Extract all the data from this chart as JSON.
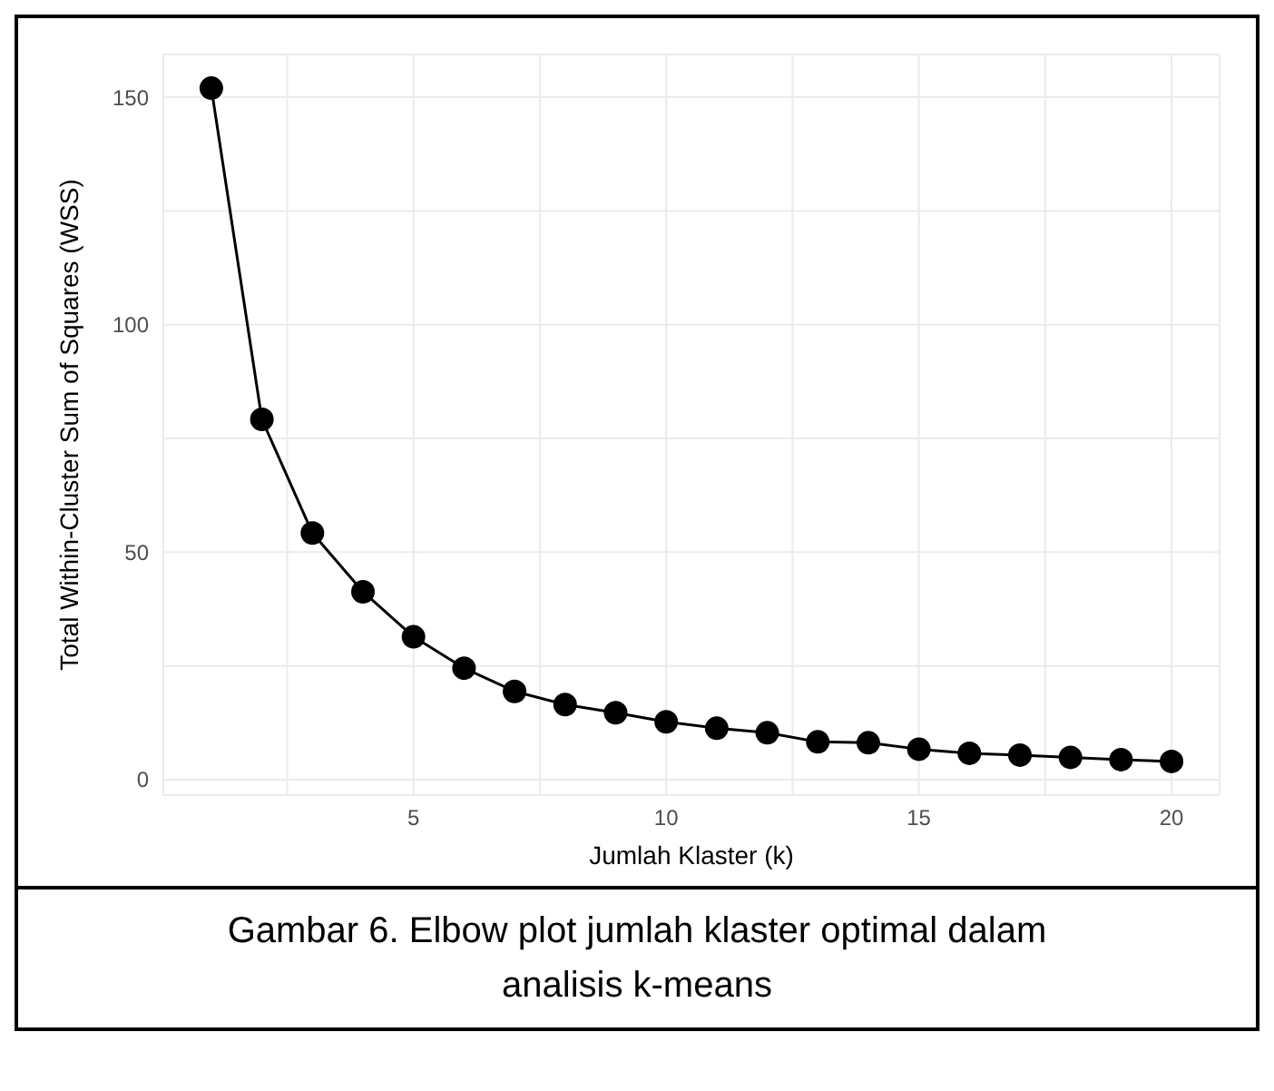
{
  "chart_data": {
    "type": "line",
    "xlabel": "Jumlah Klaster (k)",
    "ylabel": "Total Within-Cluster Sum of Squares (WSS)",
    "x": [
      1,
      2,
      3,
      4,
      5,
      6,
      7,
      8,
      9,
      10,
      11,
      12,
      13,
      14,
      15,
      16,
      17,
      18,
      19,
      20
    ],
    "series": [
      {
        "color": "#000000",
        "values": [
          152,
          79.2,
          54.2,
          41.3,
          31.4,
          24.5,
          19.4,
          16.5,
          14.7,
          12.7,
          11.3,
          10.3,
          8.3,
          8.1,
          6.7,
          5.8,
          5.4,
          4.9,
          4.4,
          4.0
        ]
      }
    ],
    "xlim": [
      0.05,
      20.95
    ],
    "ylim": [
      -3.4,
      159.4
    ],
    "xticks": [
      {
        "value": 2.5,
        "label": null
      },
      5,
      {
        "value": 7.5,
        "label": null
      },
      10,
      {
        "value": 12.5,
        "label": null
      },
      15,
      {
        "value": 17.5,
        "label": null
      },
      20
    ],
    "yticks": [
      0,
      {
        "value": 25,
        "label": null
      },
      50,
      {
        "value": 75,
        "label": null
      },
      100,
      {
        "value": 125,
        "label": null
      },
      150
    ],
    "grid": true,
    "marker": "circle",
    "line_style": "solid",
    "annotations": [
      "Gambar 6. Elbow plot jumlah klaster optimal dalam analisis k-means"
    ]
  }
}
